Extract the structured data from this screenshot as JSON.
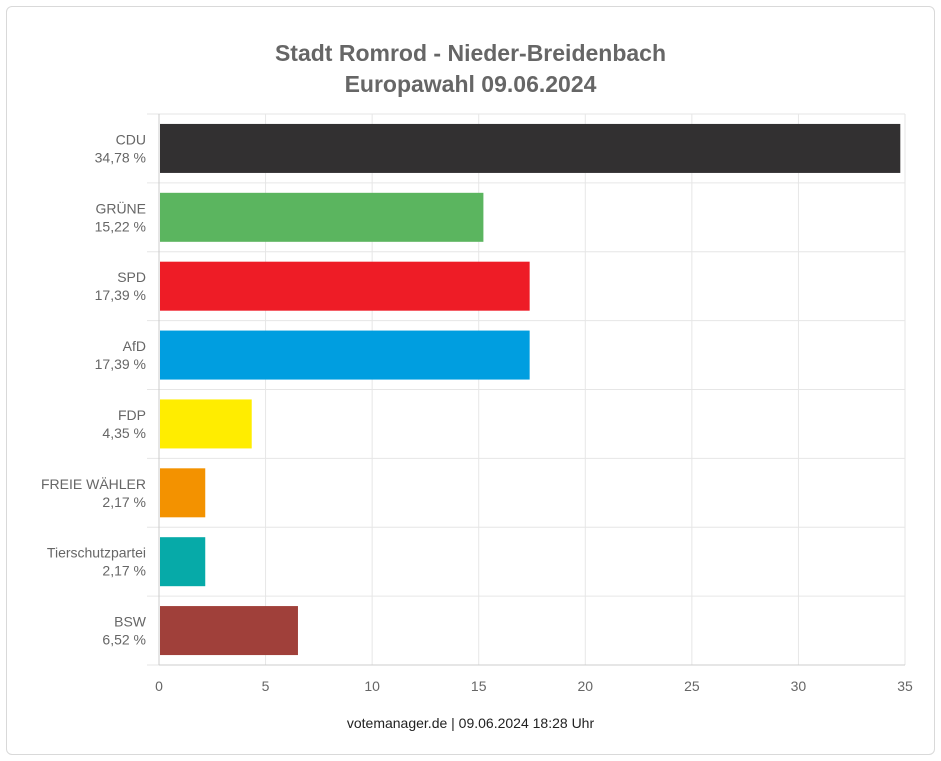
{
  "chart_data": {
    "type": "bar",
    "orientation": "horizontal",
    "title": "Stadt Romrod - Nieder-Breidenbach",
    "subtitle": "Europawahl 09.06.2024",
    "categories": [
      "CDU",
      "GRÜNE",
      "SPD",
      "AfD",
      "FDP",
      "FREIE WÄHLER",
      "Tierschutzpartei",
      "BSW"
    ],
    "value_labels": [
      "34,78 %",
      "15,22 %",
      "17,39 %",
      "17,39 %",
      "4,35 %",
      "2,17 %",
      "2,17 %",
      "6,52 %"
    ],
    "values": [
      34.78,
      15.22,
      17.39,
      17.39,
      4.35,
      2.17,
      2.17,
      6.52
    ],
    "colors": [
      "#323031",
      "#5bb55f",
      "#ee1c26",
      "#009ee0",
      "#ffed00",
      "#f39200",
      "#06aaa8",
      "#a0403a"
    ],
    "xlim": [
      0,
      35
    ],
    "xticks": [
      0,
      5,
      10,
      15,
      20,
      25,
      30,
      35
    ],
    "grid": true,
    "legend": "none",
    "xlabel": "",
    "ylabel": ""
  },
  "footer": "votemanager.de | 09.06.2024 18:28 Uhr"
}
